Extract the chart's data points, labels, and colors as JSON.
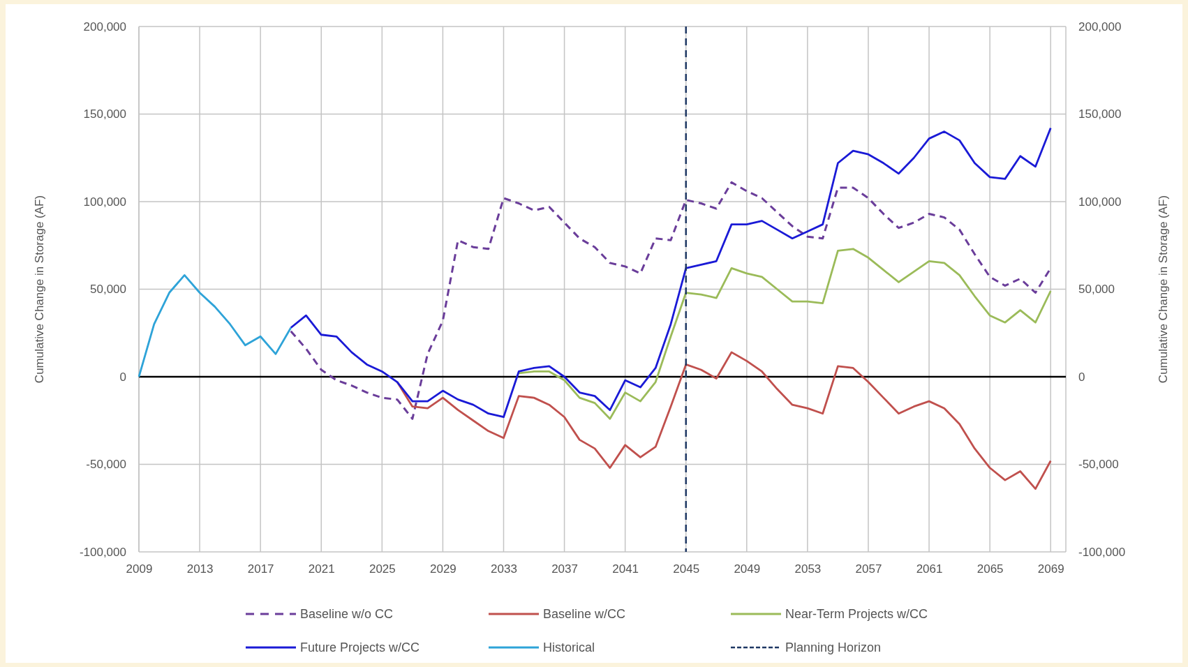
{
  "chart_data": {
    "type": "line",
    "ylabel": "Cumulative Change in Storage (AF)",
    "y2label": "Cumulative Change in Storage (AF)",
    "xlim": [
      2009,
      2070
    ],
    "xticks": [
      2009,
      2013,
      2017,
      2021,
      2025,
      2029,
      2033,
      2037,
      2041,
      2045,
      2049,
      2053,
      2057,
      2061,
      2065,
      2069
    ],
    "ylim": [
      -100000,
      200000
    ],
    "yticks": [
      {
        "value": -100000,
        "label": "-100,000"
      },
      {
        "value": -50000,
        "label": "-50,000"
      },
      0,
      {
        "value": 50000,
        "label": "50,000"
      },
      {
        "value": 100000,
        "label": "100,000"
      },
      {
        "value": 150000,
        "label": "150,000"
      },
      {
        "value": 200000,
        "label": "200,000"
      }
    ],
    "y2lim": [
      -100000,
      200000
    ],
    "y2ticks": [
      {
        "value": -100000,
        "label": "-100,000"
      },
      {
        "value": -50000,
        "label": "-50,000"
      },
      0,
      {
        "value": 50000,
        "label": "50,000"
      },
      {
        "value": 100000,
        "label": "100,000"
      },
      {
        "value": 150000,
        "label": "150,000"
      },
      {
        "value": 200000,
        "label": "200,000"
      }
    ],
    "grid": true,
    "legend": "bottom",
    "marker": "none",
    "ref_lines": [
      {
        "axis": "y",
        "value": 0,
        "color": "#000000",
        "line_style": "solid"
      },
      {
        "axis": "x",
        "value": 2045,
        "label": "Planning Horizon",
        "color": "#1f3864",
        "line_style": "dashed"
      }
    ],
    "series": [
      {
        "name": "Baseline w/o CC",
        "color": "#6a3d9a",
        "line_style": "dashed",
        "x": [
          2019,
          2020,
          2021,
          2022,
          2023,
          2024,
          2025,
          2026,
          2027,
          2028,
          2029,
          2030,
          2031,
          2032,
          2033,
          2034,
          2035,
          2036,
          2037,
          2038,
          2039,
          2040,
          2041,
          2042,
          2043,
          2044,
          2045,
          2046,
          2047,
          2048,
          2049,
          2050,
          2051,
          2052,
          2053,
          2054,
          2055,
          2056,
          2057,
          2058,
          2059,
          2060,
          2061,
          2062,
          2063,
          2064,
          2065,
          2066,
          2067,
          2068,
          2069
        ],
        "values": [
          26000,
          16000,
          4000,
          -2000,
          -5000,
          -9000,
          -12000,
          -13000,
          -24000,
          13000,
          32000,
          78000,
          74000,
          73000,
          102000,
          99000,
          95000,
          97000,
          88000,
          79000,
          74000,
          65000,
          63000,
          59000,
          79000,
          78000,
          101000,
          99000,
          96000,
          111000,
          106000,
          102000,
          94000,
          86000,
          80000,
          79000,
          108000,
          108000,
          102000,
          93000,
          85000,
          88000,
          93000,
          91000,
          84000,
          70000,
          57000,
          52000,
          56000,
          48000,
          62000
        ]
      },
      {
        "name": "Baseline w/CC",
        "color": "#c0504d",
        "line_style": "solid",
        "x": [
          2026,
          2027,
          2028,
          2029,
          2030,
          2031,
          2032,
          2033,
          2034,
          2035,
          2036,
          2037,
          2038,
          2039,
          2040,
          2041,
          2042,
          2043,
          2044,
          2045,
          2046,
          2047,
          2048,
          2049,
          2050,
          2051,
          2052,
          2053,
          2054,
          2055,
          2056,
          2057,
          2058,
          2059,
          2060,
          2061,
          2062,
          2063,
          2064,
          2065,
          2066,
          2067,
          2068,
          2069
        ],
        "values": [
          -3000,
          -17000,
          -18000,
          -12000,
          -19000,
          -25000,
          -31000,
          -35000,
          -11000,
          -12000,
          -16000,
          -23000,
          -36000,
          -41000,
          -52000,
          -39000,
          -46000,
          -40000,
          -17000,
          7000,
          4000,
          -1000,
          14000,
          9000,
          3000,
          -7000,
          -16000,
          -18000,
          -21000,
          6000,
          5000,
          -3000,
          -12000,
          -21000,
          -17000,
          -14000,
          -18000,
          -27000,
          -41000,
          -52000,
          -59000,
          -54000,
          -64000,
          -48000
        ]
      },
      {
        "name": "Near-Term Projects w/CC",
        "color": "#9bbb59",
        "line_style": "solid",
        "x": [
          2034,
          2035,
          2036,
          2037,
          2038,
          2039,
          2040,
          2041,
          2042,
          2043,
          2044,
          2045,
          2046,
          2047,
          2048,
          2049,
          2050,
          2051,
          2052,
          2053,
          2054,
          2055,
          2056,
          2057,
          2058,
          2059,
          2060,
          2061,
          2062,
          2063,
          2064,
          2065,
          2066,
          2067,
          2068,
          2069
        ],
        "values": [
          2000,
          3000,
          3000,
          -2000,
          -12000,
          -15000,
          -24000,
          -9000,
          -14000,
          -3000,
          23000,
          48000,
          47000,
          45000,
          62000,
          59000,
          57000,
          50000,
          43000,
          43000,
          42000,
          72000,
          73000,
          68000,
          61000,
          54000,
          60000,
          66000,
          65000,
          58000,
          46000,
          35000,
          31000,
          38000,
          31000,
          49000
        ]
      },
      {
        "name": "Future Projects w/CC",
        "color": "#1a1ad6",
        "line_style": "solid",
        "x": [
          2019,
          2020,
          2021,
          2022,
          2023,
          2024,
          2025,
          2026,
          2027,
          2028,
          2029,
          2030,
          2031,
          2032,
          2033,
          2034,
          2035,
          2036,
          2037,
          2038,
          2039,
          2040,
          2041,
          2042,
          2043,
          2044,
          2045,
          2046,
          2047,
          2048,
          2049,
          2050,
          2051,
          2052,
          2053,
          2054,
          2055,
          2056,
          2057,
          2058,
          2059,
          2060,
          2061,
          2062,
          2063,
          2064,
          2065,
          2066,
          2067,
          2068,
          2069
        ],
        "values": [
          28000,
          35000,
          24000,
          23000,
          14000,
          7000,
          3000,
          -3000,
          -14000,
          -14000,
          -8000,
          -13000,
          -16000,
          -21000,
          -23000,
          3000,
          5000,
          6000,
          0,
          -9000,
          -11000,
          -19000,
          -2000,
          -6000,
          5000,
          30000,
          62000,
          64000,
          66000,
          87000,
          87000,
          89000,
          84000,
          79000,
          83000,
          87000,
          122000,
          129000,
          127000,
          122000,
          116000,
          125000,
          136000,
          140000,
          135000,
          122000,
          114000,
          113000,
          126000,
          120000,
          142000
        ]
      },
      {
        "name": "Historical",
        "color": "#2ea3d8",
        "line_style": "solid",
        "x": [
          2009,
          2010,
          2011,
          2012,
          2013,
          2014,
          2015,
          2016,
          2017,
          2018,
          2019
        ],
        "values": [
          0,
          30000,
          48000,
          58000,
          48000,
          40000,
          30000,
          18000,
          23000,
          13000,
          28000
        ]
      }
    ]
  }
}
